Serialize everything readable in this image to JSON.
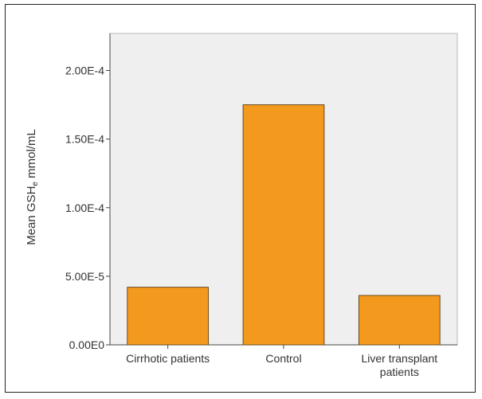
{
  "chart_data": {
    "type": "bar",
    "categories": [
      [
        "Cirrhotic patients"
      ],
      [
        "Control"
      ],
      [
        "Liver transplant",
        "patients"
      ]
    ],
    "values": [
      4.2e-05,
      0.000175,
      3.6e-05
    ],
    "ylabel": "Mean GSH, mmol/mL",
    "ylabel_parts": {
      "before": "Mean GSH",
      "subscript": "e",
      "after": " mmol/mL"
    },
    "yticks": [
      0,
      5e-05,
      0.0001,
      0.00015,
      0.0002
    ],
    "ytick_labels": [
      "0.00E0",
      "5.00E-5",
      "1.00E-4",
      "1.50E-4",
      "2.00E-4"
    ],
    "ylim": [
      0,
      0.000227
    ],
    "grid": false,
    "colors": {
      "bar": "#f39a1e",
      "bar_edge": "#6a4a1a",
      "plot_bg": "#efefef",
      "axis": "#444444"
    }
  }
}
